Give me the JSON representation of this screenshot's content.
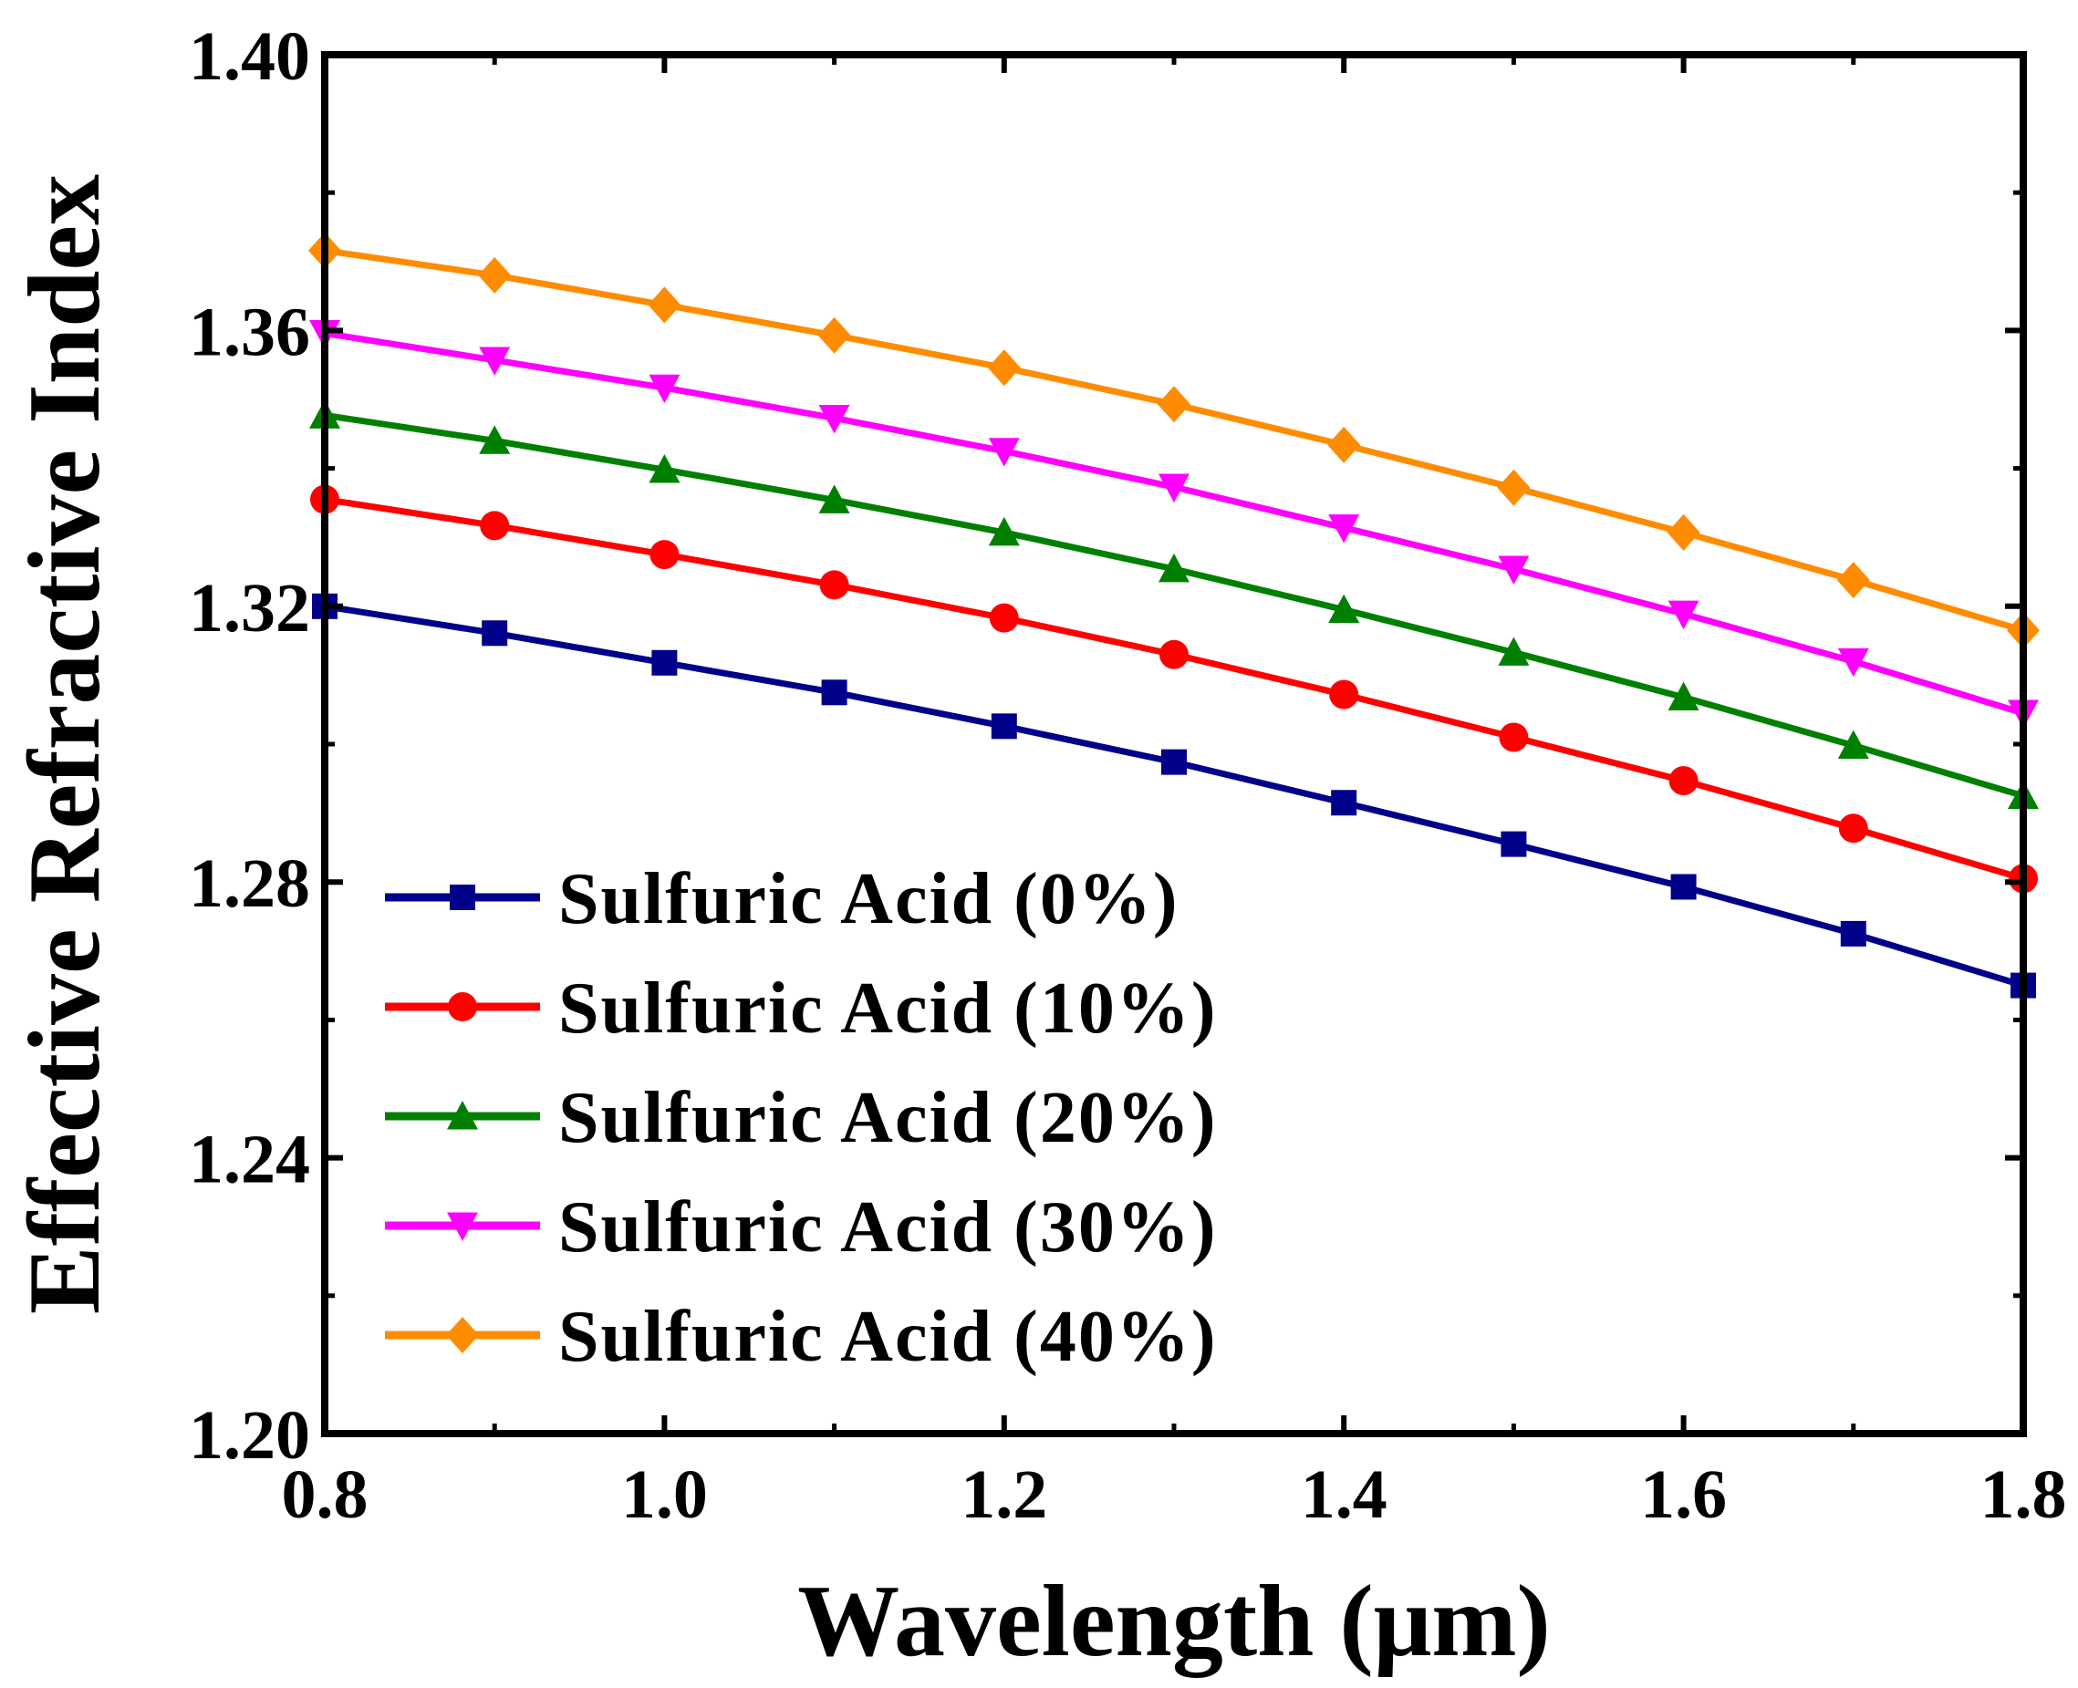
{
  "chart_data": {
    "type": "line",
    "title": "",
    "xlabel": "Wavelength (μm)",
    "ylabel": "Effective Refractive Index",
    "xlim": [
      0.8,
      1.8
    ],
    "ylim": [
      1.2,
      1.4
    ],
    "xticks": [
      0.8,
      1.0,
      1.2,
      1.4,
      1.6,
      1.8
    ],
    "xtick_labels": [
      "0.8",
      "1.0",
      "1.2",
      "1.4",
      "1.6",
      "1.8"
    ],
    "yticks": [
      1.2,
      1.24,
      1.28,
      1.32,
      1.36,
      1.4
    ],
    "ytick_labels": [
      "1.20",
      "1.24",
      "1.28",
      "1.32",
      "1.36",
      "1.40"
    ],
    "grid": false,
    "legend_position": "lower-left",
    "x": [
      0.8,
      0.9,
      1.0,
      1.1,
      1.2,
      1.3,
      1.4,
      1.5,
      1.6,
      1.7,
      1.8
    ],
    "series": [
      {
        "name": "Sulfuric Acid (0%)",
        "color": "#00008B",
        "marker": "square",
        "values": [
          1.32,
          1.3161,
          1.3118,
          1.3075,
          1.3026,
          1.2974,
          1.2915,
          1.2855,
          1.2793,
          1.2725,
          1.265
        ]
      },
      {
        "name": "Sulfuric Acid (10%)",
        "color": "#FF0000",
        "marker": "circle",
        "values": [
          1.3355,
          1.3317,
          1.3275,
          1.3231,
          1.3183,
          1.313,
          1.3072,
          1.301,
          1.2947,
          1.2878,
          1.2805
        ]
      },
      {
        "name": "Sulfuric Acid (20%)",
        "color": "#008000",
        "marker": "triangle-up",
        "values": [
          1.3477,
          1.344,
          1.3398,
          1.3354,
          1.3307,
          1.3254,
          1.3195,
          1.3133,
          1.3068,
          1.2998,
          1.2925
        ]
      },
      {
        "name": "Sulfuric Acid (30%)",
        "color": "#FF00FF",
        "marker": "triangle-down",
        "values": [
          1.3596,
          1.3557,
          1.3517,
          1.3473,
          1.3425,
          1.3373,
          1.3314,
          1.3254,
          1.3189,
          1.312,
          1.3045
        ]
      },
      {
        "name": "Sulfuric Acid (40%)",
        "color": "#FF8C00",
        "marker": "diamond",
        "values": [
          1.3716,
          1.368,
          1.3637,
          1.3593,
          1.3546,
          1.3493,
          1.3434,
          1.3372,
          1.3307,
          1.3238,
          1.3165
        ]
      }
    ]
  }
}
